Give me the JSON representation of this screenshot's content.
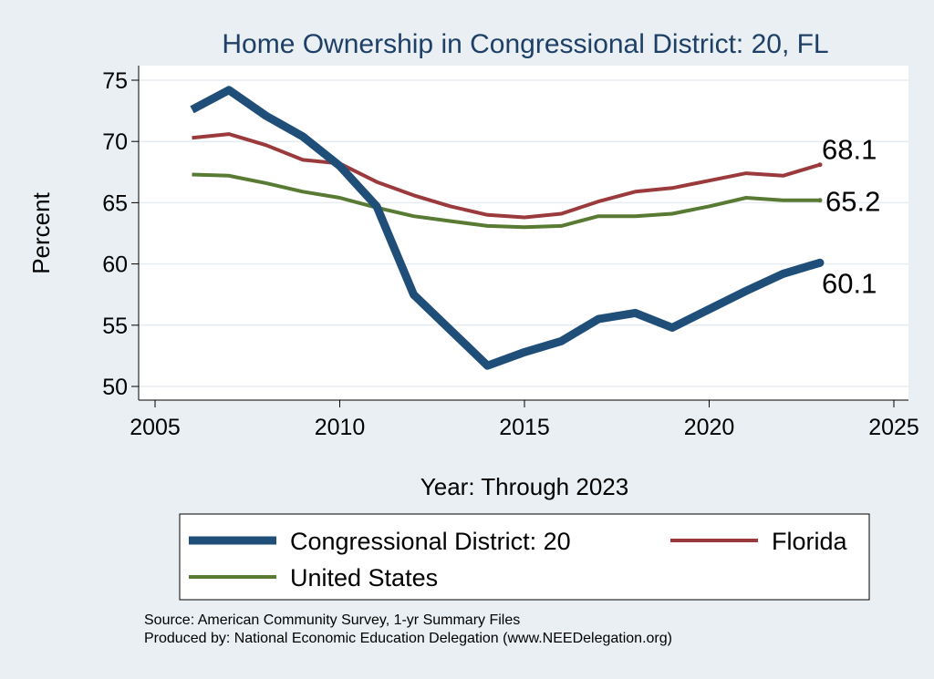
{
  "chart_data": {
    "type": "line",
    "title": "Home Ownership in Congressional District:  20, FL",
    "xlabel": "Year: Through 2023",
    "ylabel": "Percent",
    "xlim": [
      2005,
      2025
    ],
    "ylim": [
      50,
      75
    ],
    "x_ticks": [
      "2005",
      "2010",
      "2015",
      "2020",
      "2025"
    ],
    "y_ticks": [
      "50",
      "55",
      "60",
      "65",
      "70",
      "75"
    ],
    "grid": true,
    "legend_position": "bottom",
    "x": [
      2006,
      2007,
      2008,
      2009,
      2010,
      2011,
      2012,
      2013,
      2014,
      2015,
      2016,
      2017,
      2018,
      2019,
      2020,
      2021,
      2022,
      2023
    ],
    "series": [
      {
        "name": "Congressional District:  20",
        "color": "#1f4e79",
        "values": [
          72.6,
          74.2,
          72.1,
          70.4,
          68.0,
          64.7,
          57.5,
          54.6,
          51.7,
          52.8,
          53.7,
          55.5,
          56.0,
          54.8,
          56.3,
          57.8,
          59.2,
          60.1
        ],
        "end_label": "60.1"
      },
      {
        "name": "Florida",
        "color": "#9b3a3c",
        "values": [
          70.3,
          70.6,
          69.7,
          68.5,
          68.2,
          66.7,
          65.6,
          64.7,
          64.0,
          63.8,
          64.1,
          65.1,
          65.9,
          66.2,
          66.8,
          67.4,
          67.2,
          68.1
        ],
        "end_label": "68.1"
      },
      {
        "name": "United States",
        "color": "#587a32",
        "values": [
          67.3,
          67.2,
          66.6,
          65.9,
          65.4,
          64.6,
          63.9,
          63.5,
          63.1,
          63.0,
          63.1,
          63.9,
          63.9,
          64.1,
          64.7,
          65.4,
          65.2,
          65.2
        ],
        "end_label": "65.2"
      }
    ]
  },
  "footer": {
    "source": "Source: American Community Survey, 1-yr Summary Files",
    "producer": "Produced by: National Economic Education Delegation (www.NEEDelegation.org)"
  }
}
